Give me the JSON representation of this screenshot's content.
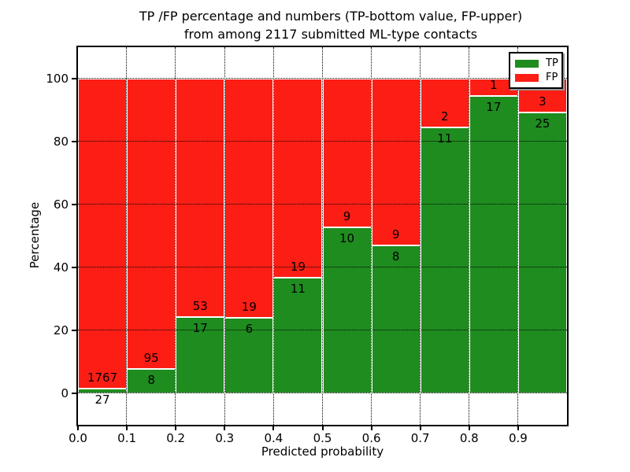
{
  "figure": {
    "title_line1": "TP /FP percentage and numbers (TP-bottom value, FP-upper)",
    "title_line2": "from among 2117 submitted ML-type contacts"
  },
  "chart_data": {
    "type": "bar",
    "stacked": true,
    "normalized": "percent",
    "title": "TP /FP percentage and numbers (TP-bottom value, FP-upper)\nfrom among 2117 submitted ML-type contacts",
    "xlabel": "Predicted probability",
    "ylabel": "Percentage",
    "xlim": [
      0.0,
      1.0
    ],
    "ylim": [
      -10,
      110
    ],
    "bin_width": 0.1,
    "bin_starts": [
      0.0,
      0.1,
      0.2,
      0.3,
      0.4,
      0.5,
      0.6,
      0.7,
      0.8,
      0.9
    ],
    "x_tick_labels": [
      "0.0",
      "0.1",
      "0.2",
      "0.3",
      "0.4",
      "0.5",
      "0.6",
      "0.7",
      "0.8",
      "0.9"
    ],
    "y_tick_values": [
      0,
      20,
      40,
      60,
      80,
      100
    ],
    "y_tick_labels": [
      "0",
      "20",
      "40",
      "60",
      "80",
      "100"
    ],
    "total_contacts": 2117,
    "series": [
      {
        "name": "TP",
        "color": "#1f8c1f",
        "counts": [
          27,
          8,
          17,
          6,
          11,
          10,
          8,
          11,
          17,
          25
        ]
      },
      {
        "name": "FP",
        "color": "#fc1e15",
        "counts": [
          1767,
          95,
          53,
          19,
          19,
          9,
          9,
          2,
          1,
          3
        ]
      }
    ],
    "tp_percent": [
      1.51,
      7.77,
      24.29,
      24.0,
      36.67,
      52.63,
      47.06,
      84.62,
      94.44,
      89.29
    ],
    "legend": {
      "position": "upper right",
      "entries": [
        {
          "label": "TP",
          "color": "#1f8c1f"
        },
        {
          "label": "FP",
          "color": "#fc1e15"
        }
      ]
    },
    "grid": {
      "style": "dotted",
      "color": "#000000"
    }
  }
}
